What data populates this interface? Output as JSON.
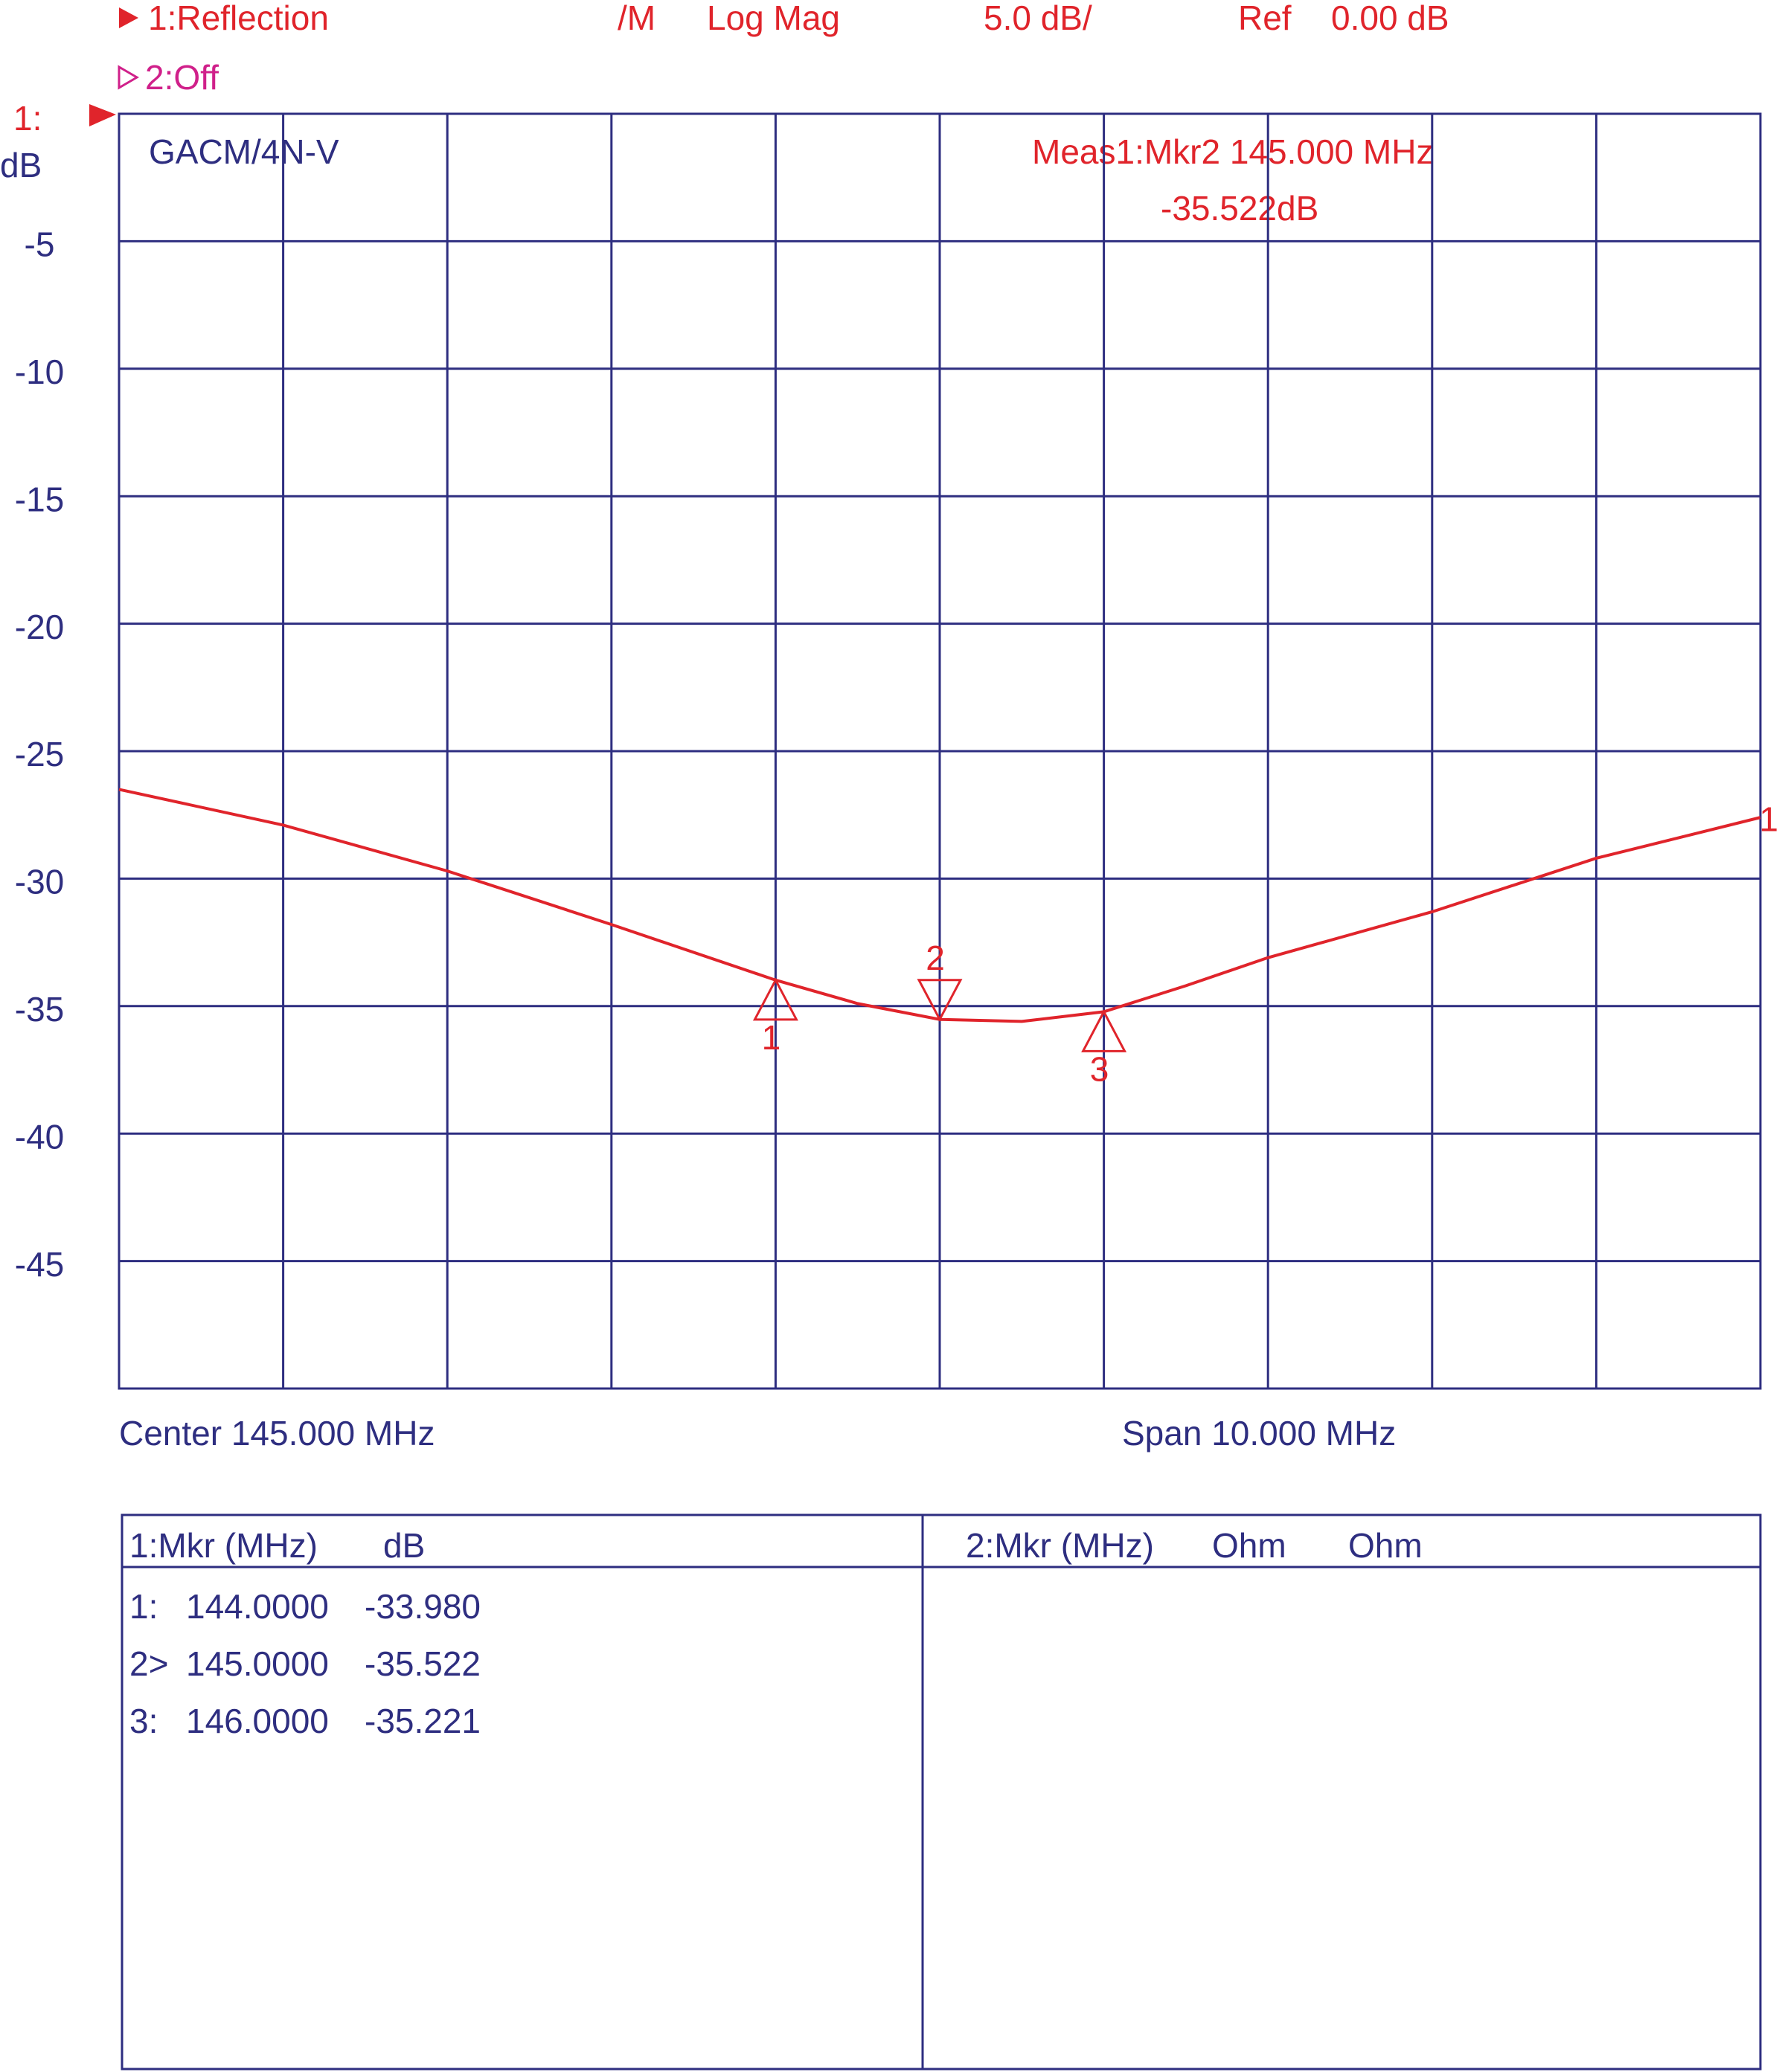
{
  "chart_data": {
    "type": "line",
    "header": {
      "trace1": "1:Reflection",
      "format_prefix": "/M",
      "format": "Log Mag",
      "scale": "5.0 dB/",
      "ref_label": "Ref",
      "ref_value": "0.00 dB",
      "trace2": "2:Off"
    },
    "y_axis_label_top": "1:",
    "y_axis_label": "dB",
    "title": "GACM/4N-V",
    "annotation": [
      "Meas1:Mkr2  145.000 MHz",
      "-35.522dB"
    ],
    "x_left_label": "Center 145.000 MHz",
    "x_right_label": "Span 10.000 MHz",
    "xlim": [
      140,
      150
    ],
    "xticks": [
      141,
      142,
      143,
      144,
      145,
      146,
      147,
      148,
      149
    ],
    "ylim": [
      -50,
      0
    ],
    "yticks": [
      -5,
      -10,
      -15,
      -20,
      -25,
      -30,
      -35,
      -40,
      -45
    ],
    "grid": true,
    "series": [
      {
        "name": "1",
        "color": "#e0242b",
        "x": [
          140,
          141,
          142,
          143,
          144,
          144.5,
          145,
          145.5,
          146,
          146.5,
          147,
          148,
          149,
          150
        ],
        "values": [
          -26.5,
          -27.9,
          -29.7,
          -31.8,
          -33.98,
          -34.9,
          -35.522,
          -35.6,
          -35.221,
          -34.2,
          -33.1,
          -31.3,
          -29.2,
          -27.6
        ]
      }
    ],
    "markers": {
      "labels": [
        "1",
        "2",
        "3"
      ],
      "x": [
        144,
        145,
        146
      ],
      "x_labels": [
        "144.0000",
        "145.0000",
        "146.0000"
      ],
      "values": [
        -33.98,
        -35.522,
        -35.221
      ],
      "value_labels": [
        "-33.980",
        "-35.522",
        "-35.221"
      ]
    },
    "table": {
      "left_header": [
        "1:Mkr (MHz)",
        "dB"
      ],
      "right_header": [
        "2:Mkr (MHz)",
        "Ohm",
        "Ohm"
      ],
      "row_labels": [
        "1:",
        "2>",
        "3:"
      ]
    }
  }
}
